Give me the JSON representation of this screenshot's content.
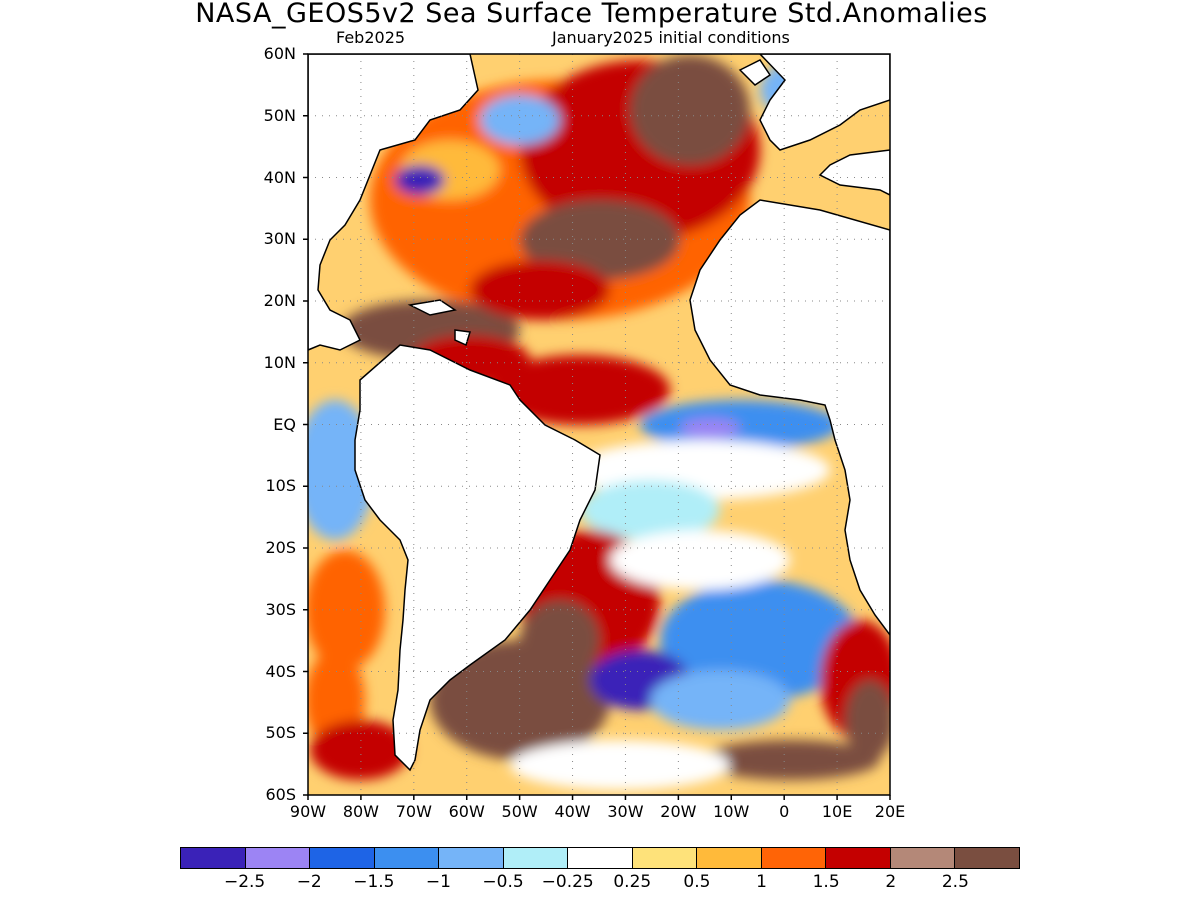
{
  "title": "NASA_GEOS5v2 Sea Surface Temperature Std.Anomalies",
  "subtitle_left": "Feb2025",
  "subtitle_right": "January2025 initial conditions",
  "map": {
    "lat_labels": [
      "60N",
      "50N",
      "40N",
      "30N",
      "20N",
      "10N",
      "EQ",
      "10S",
      "20S",
      "30S",
      "40S",
      "50S",
      "60S"
    ],
    "lon_labels": [
      "90W",
      "80W",
      "70W",
      "60W",
      "50W",
      "40W",
      "30W",
      "20W",
      "10W",
      "0",
      "10E",
      "20E"
    ],
    "lat_range": [
      -60,
      60
    ],
    "lon_range": [
      -90,
      20
    ],
    "grid": "dotted"
  },
  "colorbar": {
    "colors": [
      "#3a22b8",
      "#9c84f4",
      "#1e64e6",
      "#3c8ff0",
      "#75b4f8",
      "#b0eef8",
      "#ffffff",
      "#fee27a",
      "#ffba3a",
      "#ff6406",
      "#c40000",
      "#b48878",
      "#7a4e40"
    ],
    "labels": [
      "−2.5",
      "−2",
      "−1.5",
      "−1",
      "−0.5",
      "−0.25",
      "0.25",
      "0.5",
      "1",
      "1.5",
      "2",
      "2.5"
    ]
  }
}
